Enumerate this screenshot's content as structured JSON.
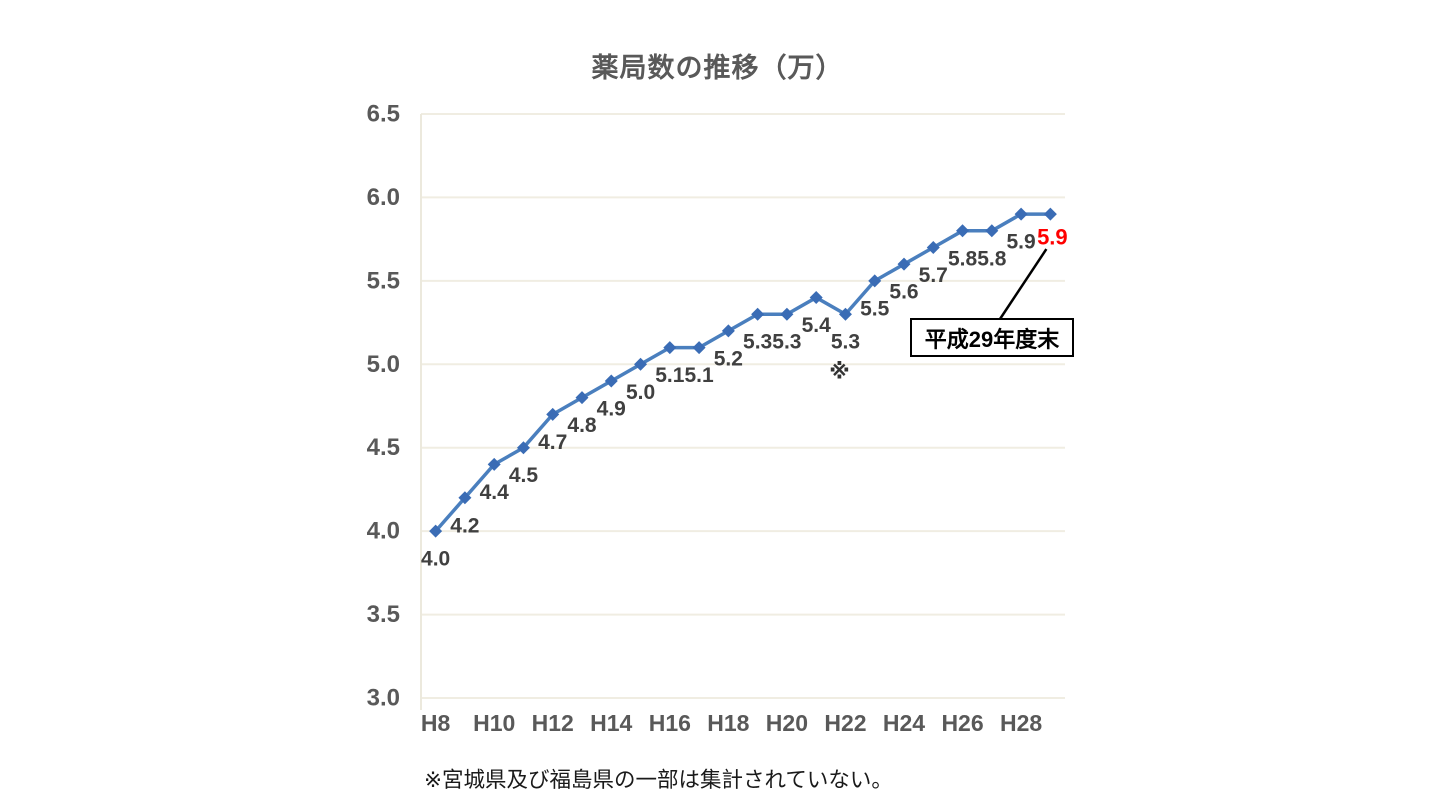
{
  "chart_data": {
    "type": "line",
    "title": "薬局数の推移（万）",
    "x": [
      "H8",
      "H9",
      "H10",
      "H11",
      "H12",
      "H13",
      "H14",
      "H15",
      "H16",
      "H17",
      "H18",
      "H19",
      "H20",
      "H21",
      "H22",
      "H23",
      "H24",
      "H25",
      "H26",
      "H27",
      "H28",
      "H29"
    ],
    "x_tick_labels": [
      "H8",
      "H10",
      "H12",
      "H14",
      "H16",
      "H18",
      "H20",
      "H22",
      "H24",
      "H26",
      "H28"
    ],
    "x_tick_every": 2,
    "values": [
      4.0,
      4.2,
      4.4,
      4.5,
      4.7,
      4.8,
      4.9,
      5.0,
      5.1,
      5.1,
      5.2,
      5.3,
      5.3,
      5.4,
      5.3,
      5.5,
      5.6,
      5.7,
      5.8,
      5.8,
      5.9,
      5.9
    ],
    "label_format": "1dp",
    "ylim": [
      3.0,
      6.5
    ],
    "y_ticks": [
      6.5,
      6.0,
      5.5,
      5.0,
      4.5,
      4.0,
      3.5,
      3.0
    ],
    "grid": "horizontal",
    "legend": "none",
    "colors": {
      "line": "#4a7fbe",
      "marker": "#3a6cb5",
      "grid": "#f0ede2",
      "axis_line": "#ece9dd",
      "data_label": "#404040",
      "axis_label": "#595959",
      "highlight": "#ff0000"
    },
    "highlight_last_point": true,
    "note_marker": {
      "symbol": "※",
      "index": 14
    },
    "annotation": {
      "text": "平成29年度末",
      "target_index": 21
    },
    "footnote": "※宮城県及び福島県の一部は集計されていない。"
  }
}
